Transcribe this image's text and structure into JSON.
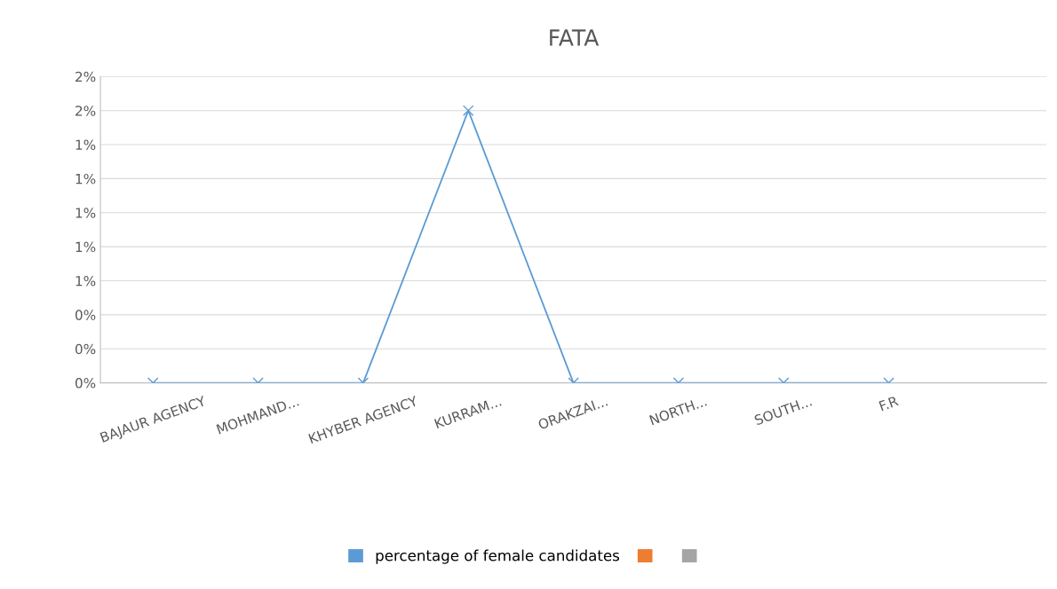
{
  "chart_data": {
    "type": "line",
    "title": "FATA",
    "categories": [
      "BAJAUR AGENCY",
      "MOHMAND...",
      "KHYBER AGENCY",
      "KURRAM...",
      "ORAKZAI...",
      "NORTH...",
      "SOUTH...",
      "F.R",
      null
    ],
    "series": [
      {
        "name": "percentage of female candidates",
        "color": "#5b9bd5",
        "values": [
          0,
          0,
          0,
          1.6,
          0,
          0,
          0,
          0,
          null
        ]
      },
      {
        "color": "#ed7d31",
        "values": [
          null,
          null,
          null,
          null,
          null,
          null,
          null,
          null,
          null
        ]
      },
      {
        "color": "#a5a5a5",
        "values": [
          null,
          null,
          null,
          null,
          null,
          null,
          null,
          null,
          null
        ]
      }
    ],
    "ylim": [
      0,
      1.8
    ],
    "yticks": [
      {
        "value": 0,
        "label": "0%"
      },
      {
        "value": 0.2,
        "label": "0%"
      },
      {
        "value": 0.4,
        "label": "0%"
      },
      {
        "value": 0.6,
        "label": "1%"
      },
      {
        "value": 0.8,
        "label": "1%"
      },
      {
        "value": 1.0,
        "label": "1%"
      },
      {
        "value": 1.2,
        "label": "1%"
      },
      {
        "value": 1.4,
        "label": "1%"
      },
      {
        "value": 1.6,
        "label": "2%"
      },
      {
        "value": 1.8,
        "label": "2%"
      }
    ],
    "grid": "y",
    "legend": "bottom",
    "marker": "cross",
    "line_style": "solid"
  }
}
